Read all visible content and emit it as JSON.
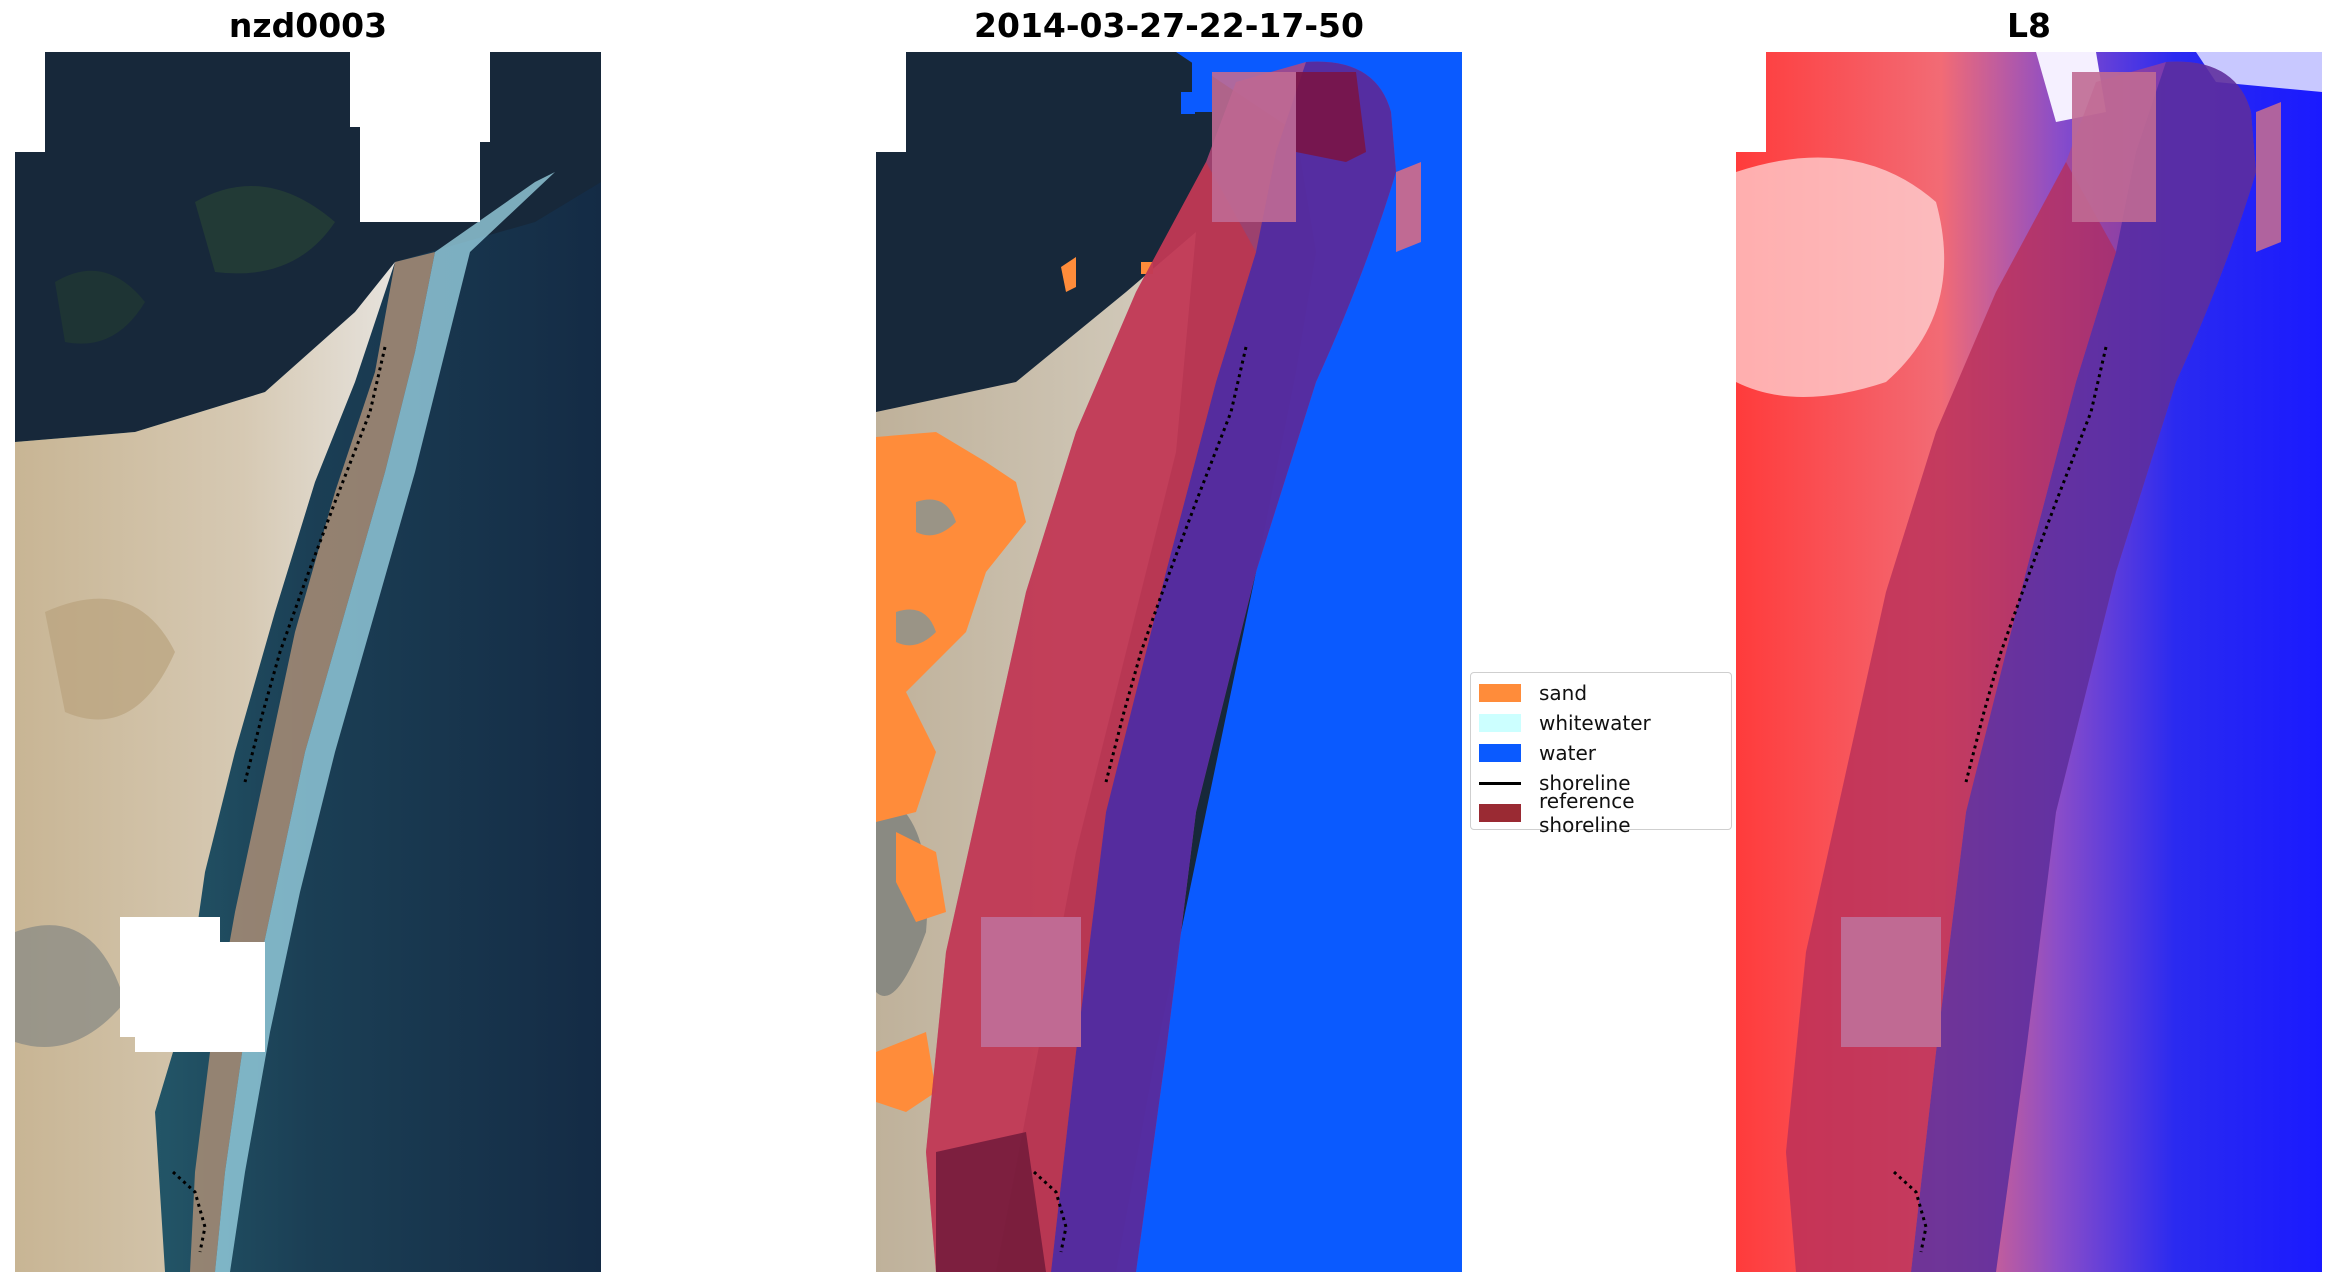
{
  "panels": [
    {
      "title": "nzd0003",
      "kind": "rgb-image"
    },
    {
      "title": "2014-03-27-22-17-50",
      "kind": "classified-image"
    },
    {
      "title": "L8",
      "kind": "index-image"
    }
  ],
  "legend": {
    "items": [
      {
        "label": "sand",
        "color": "#ff8c3a",
        "kind": "patch"
      },
      {
        "label": "whitewater",
        "color": "#ccffff",
        "kind": "patch"
      },
      {
        "label": "water",
        "color": "#0a5aff",
        "kind": "patch"
      },
      {
        "label": "shoreline",
        "color": "#000000",
        "kind": "line"
      },
      {
        "label": "reference shoreline",
        "color": "#9a2a33",
        "kind": "patch"
      }
    ]
  },
  "colors": {
    "reference_buffer": "#b9477a",
    "water_class": "#0a5aff",
    "sand_class": "#ff8c3a"
  }
}
